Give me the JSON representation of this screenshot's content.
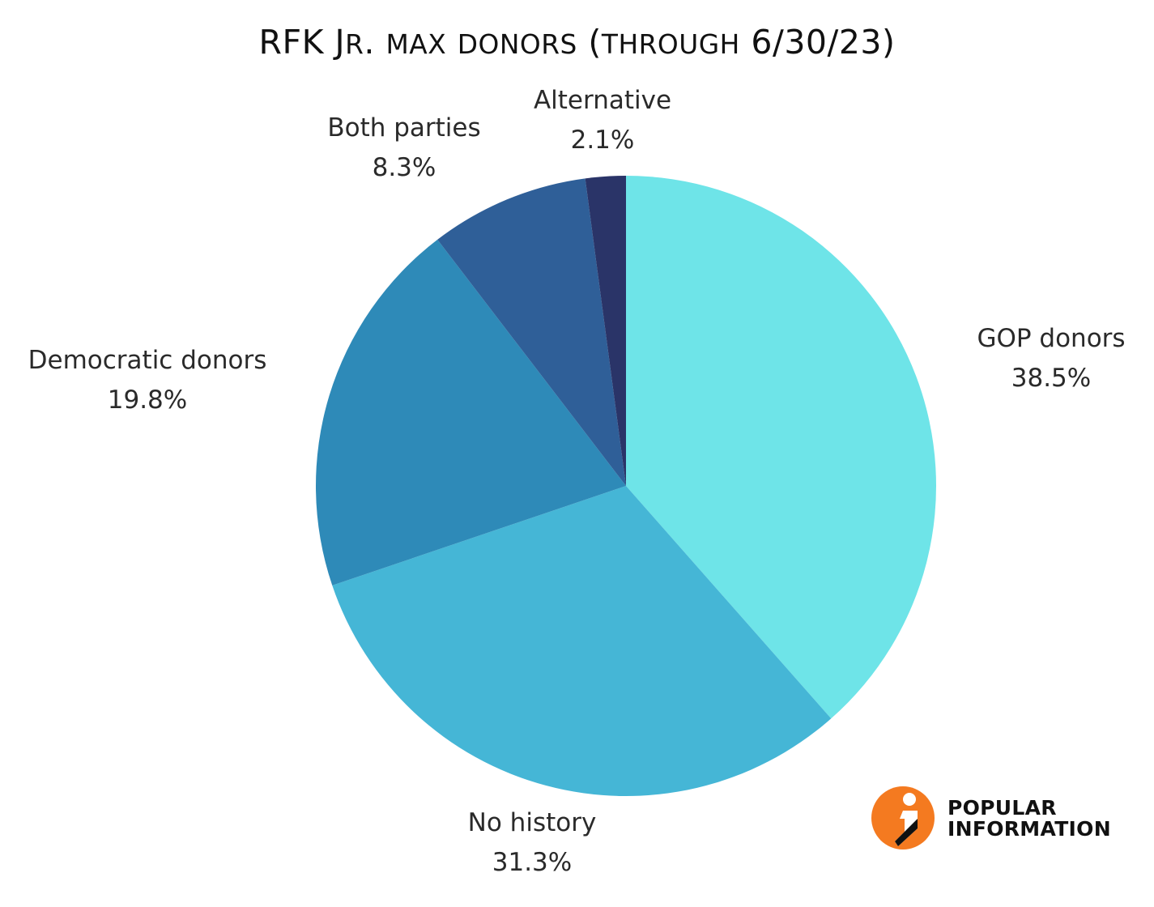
{
  "chart_data": {
    "type": "pie",
    "title": "RFK Jr. max donors (through 6/30/23)",
    "slices": [
      {
        "label": "GOP donors",
        "value": 38.5,
        "value_label": "38.5%",
        "color": "#6ee4e8"
      },
      {
        "label": "No history",
        "value": 31.3,
        "value_label": "31.3%",
        "color": "#45b6d6"
      },
      {
        "label": "Democratic donors",
        "value": 19.8,
        "value_label": "19.8%",
        "color": "#2e8ab8"
      },
      {
        "label": "Both parties",
        "value": 8.3,
        "value_label": "8.3%",
        "color": "#2f5f98"
      },
      {
        "label": "Alternative",
        "value": 2.1,
        "value_label": "2.1%",
        "color": "#2a3468"
      }
    ],
    "start_position": "top",
    "direction": "clockwise"
  },
  "logo": {
    "line1": "POPULAR",
    "line2": "INFORMATION",
    "accent_color": "#f47a20",
    "icon": "info-i-icon"
  }
}
